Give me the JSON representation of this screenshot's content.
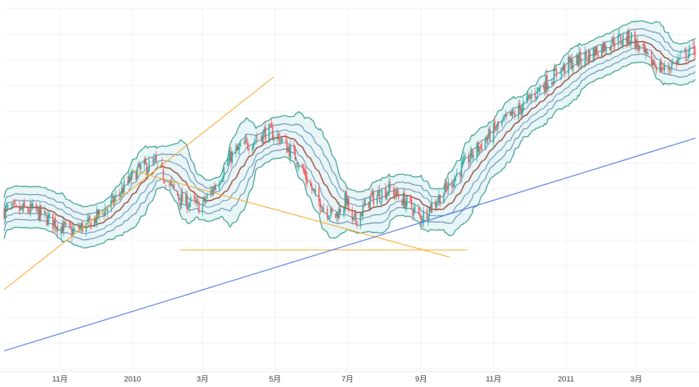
{
  "colors": {
    "up": "#26a69a",
    "down": "#ef5350",
    "band_outer": "#1a8c7c",
    "band_inner": "#3d6f9e",
    "band_fill": "#d7eef0",
    "basis": "#8b2a1e",
    "trend_orange": "#f5a623",
    "trend_blue": "#4169e1",
    "grid": "#eef0f3",
    "axis_text": "#333333"
  },
  "chart_data": {
    "type": "candlestick",
    "title": "",
    "xlabel": "",
    "ylabel": "",
    "x_range": [
      "2009-09-15",
      "2011-04-20"
    ],
    "y_range": [
      0,
      100
    ],
    "grid": true,
    "legend": "none",
    "xticks": [
      {
        "date": "2009-11-01",
        "label": "11月"
      },
      {
        "date": "2010-01-01",
        "label": "2010"
      },
      {
        "date": "2010-03-01",
        "label": "3月"
      },
      {
        "date": "2010-05-01",
        "label": "5月"
      },
      {
        "date": "2010-07-01",
        "label": "7月"
      },
      {
        "date": "2010-09-01",
        "label": "9月"
      },
      {
        "date": "2010-11-01",
        "label": "11月"
      },
      {
        "date": "2011-01-01",
        "label": "2011"
      },
      {
        "date": "2011-03-01",
        "label": "3月"
      }
    ],
    "price_path": [
      [
        "2009-09-15",
        44
      ],
      [
        "2009-10-10",
        44
      ],
      [
        "2009-10-25",
        41
      ],
      [
        "2009-11-10",
        38
      ],
      [
        "2009-11-25",
        40
      ],
      [
        "2009-12-15",
        46
      ],
      [
        "2010-01-05",
        55
      ],
      [
        "2010-01-20",
        57
      ],
      [
        "2010-02-10",
        47
      ],
      [
        "2010-02-28",
        45
      ],
      [
        "2010-03-10",
        50
      ],
      [
        "2010-03-25",
        59
      ],
      [
        "2010-04-10",
        63
      ],
      [
        "2010-04-25",
        66
      ],
      [
        "2010-05-05",
        64
      ],
      [
        "2010-05-20",
        58
      ],
      [
        "2010-06-05",
        47
      ],
      [
        "2010-06-20",
        42
      ],
      [
        "2010-06-30",
        47
      ],
      [
        "2010-07-05",
        40
      ],
      [
        "2010-07-20",
        47
      ],
      [
        "2010-08-05",
        50
      ],
      [
        "2010-08-20",
        46
      ],
      [
        "2010-09-01",
        42
      ],
      [
        "2010-09-20",
        49
      ],
      [
        "2010-10-10",
        58
      ],
      [
        "2010-11-01",
        66
      ],
      [
        "2010-11-20",
        71
      ],
      [
        "2010-12-10",
        78
      ],
      [
        "2011-01-01",
        84
      ],
      [
        "2011-01-20",
        87
      ],
      [
        "2011-02-10",
        91
      ],
      [
        "2011-02-25",
        92
      ],
      [
        "2011-03-10",
        86
      ],
      [
        "2011-03-25",
        83
      ],
      [
        "2011-04-20",
        89
      ]
    ],
    "trendlines": [
      {
        "color_key": "trend_orange",
        "from": [
          "2009-09-15",
          22
        ],
        "to": [
          "2010-04-30",
          81
        ]
      },
      {
        "color_key": "trend_orange",
        "from": [
          "2010-01-01",
          55
        ],
        "to": [
          "2010-09-25",
          31
        ]
      },
      {
        "color_key": "trend_orange",
        "from": [
          "2010-02-10",
          33
        ],
        "to": [
          "2010-10-10",
          33
        ]
      },
      {
        "color_key": "trend_blue",
        "from": [
          "2009-09-15",
          5
        ],
        "to": [
          "2011-04-20",
          64
        ]
      }
    ]
  }
}
